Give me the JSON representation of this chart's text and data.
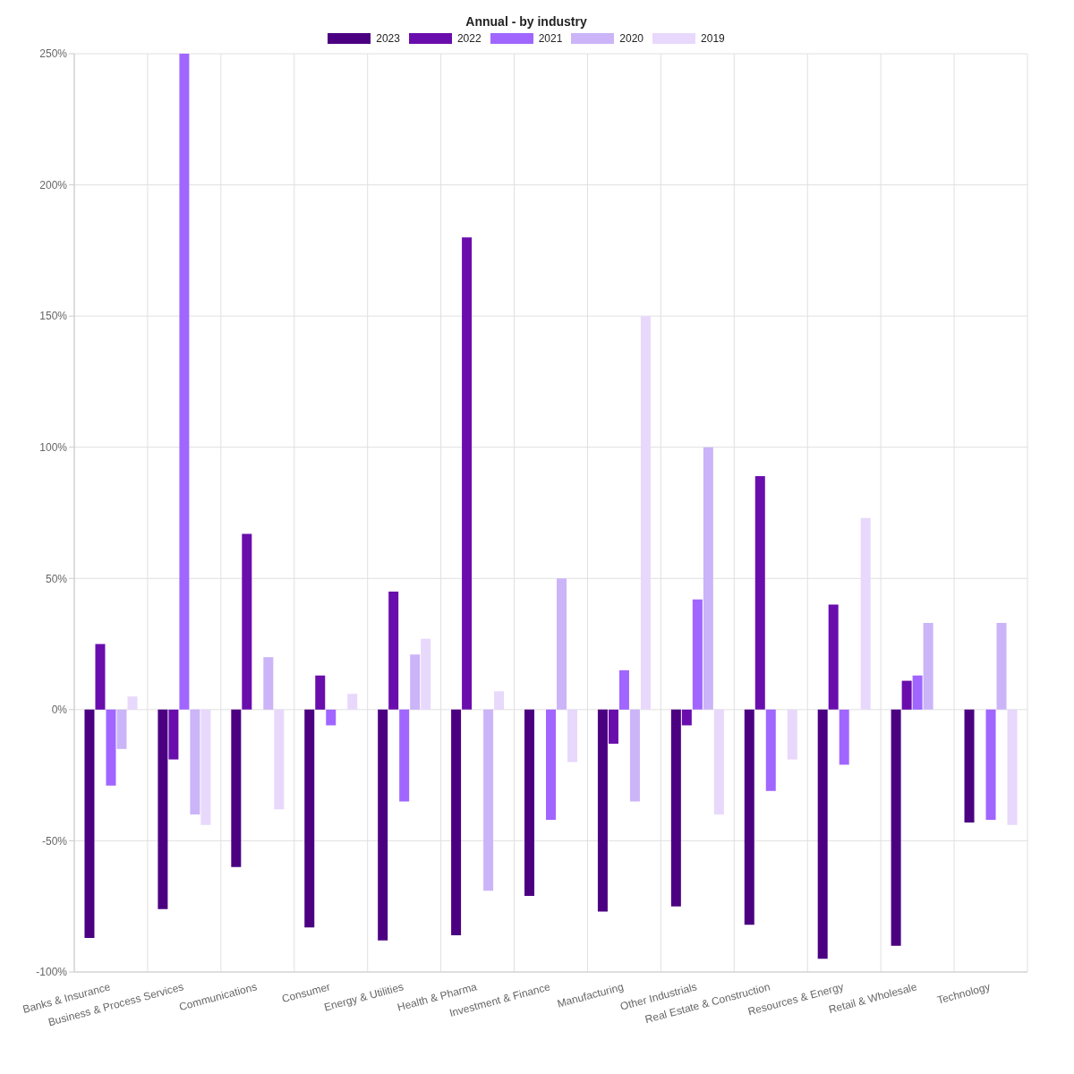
{
  "chart_data": {
    "type": "bar",
    "title": "Annual - by industry",
    "categories": [
      "Banks & Insurance",
      "Business & Process Services",
      "Communications",
      "Consumer",
      "Energy & Utilities",
      "Health & Pharma",
      "Investment & Finance",
      "Manufacturing",
      "Other Industrials",
      "Real Estate & Construction",
      "Resources & Energy",
      "Retail & Wholesale",
      "Technology"
    ],
    "series": [
      {
        "name": "2023",
        "color": "#4b0082",
        "values": [
          -87,
          -76,
          -60,
          -83,
          -88,
          -86,
          -71,
          -77,
          -75,
          -82,
          -95,
          -90,
          -43
        ]
      },
      {
        "name": "2022",
        "color": "#6a0dad",
        "values": [
          25,
          -19,
          67,
          13,
          45,
          180,
          null,
          -13,
          -6,
          89,
          40,
          11,
          null
        ]
      },
      {
        "name": "2021",
        "color": "#a066ff",
        "values": [
          -29,
          250,
          null,
          -6,
          -35,
          null,
          -42,
          15,
          42,
          -31,
          -21,
          13,
          -42
        ]
      },
      {
        "name": "2020",
        "color": "#cbb4f8",
        "values": [
          -15,
          -40,
          20,
          null,
          21,
          -69,
          50,
          -35,
          100,
          null,
          null,
          33,
          33
        ]
      },
      {
        "name": "2019",
        "color": "#e8d8fc",
        "values": [
          5,
          -44,
          -38,
          6,
          27,
          7,
          -20,
          150,
          -40,
          -19,
          73,
          null,
          -44
        ]
      }
    ],
    "ylim": [
      -100,
      250
    ],
    "yticks": [
      {
        "value": -100,
        "label": "-100%"
      },
      {
        "value": -50,
        "label": "-50%"
      },
      {
        "value": 0,
        "label": "0%"
      },
      {
        "value": 50,
        "label": "50%"
      },
      {
        "value": 100,
        "label": "100%"
      },
      {
        "value": 150,
        "label": "150%"
      },
      {
        "value": 200,
        "label": "200%"
      },
      {
        "value": 250,
        "label": "250%"
      }
    ],
    "grid": true,
    "legend": "top"
  }
}
